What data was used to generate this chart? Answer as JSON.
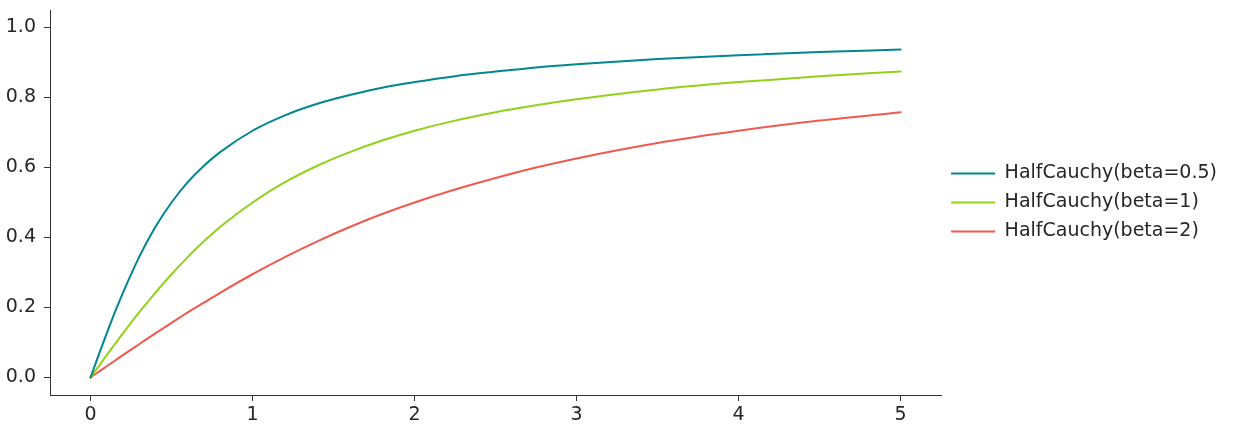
{
  "chart_data": {
    "type": "line",
    "x": [
      0,
      0.05,
      0.1,
      0.15,
      0.2,
      0.3,
      0.4,
      0.5,
      0.6,
      0.7,
      0.8,
      1.0,
      1.2,
      1.4,
      1.6,
      1.8,
      2.0,
      2.25,
      2.5,
      2.75,
      3.0,
      3.5,
      4.0,
      4.5,
      5.0
    ],
    "series": [
      {
        "name": "HalfCauchy(beta=0.5)",
        "color": "#00878f",
        "values": [
          0,
          0.064,
          0.126,
          0.186,
          0.242,
          0.344,
          0.43,
          0.5,
          0.558,
          0.605,
          0.644,
          0.705,
          0.749,
          0.782,
          0.807,
          0.828,
          0.844,
          0.861,
          0.874,
          0.886,
          0.895,
          0.91,
          0.921,
          0.93,
          0.937
        ]
      },
      {
        "name": "HalfCauchy(beta=1)",
        "color": "#8fd21a",
        "values": [
          0,
          0.032,
          0.064,
          0.095,
          0.126,
          0.186,
          0.242,
          0.295,
          0.344,
          0.389,
          0.43,
          0.5,
          0.558,
          0.605,
          0.644,
          0.677,
          0.705,
          0.734,
          0.758,
          0.778,
          0.795,
          0.823,
          0.844,
          0.861,
          0.874
        ]
      },
      {
        "name": "HalfCauchy(beta=2)",
        "color": "#ef5a50",
        "values": [
          0,
          0.016,
          0.032,
          0.048,
          0.064,
          0.095,
          0.126,
          0.156,
          0.186,
          0.214,
          0.242,
          0.295,
          0.344,
          0.389,
          0.43,
          0.467,
          0.5,
          0.537,
          0.57,
          0.6,
          0.626,
          0.67,
          0.705,
          0.734,
          0.758
        ]
      }
    ],
    "xlim": [
      -0.25,
      5.25
    ],
    "xticks": [
      0,
      1,
      2,
      3,
      4,
      5
    ],
    "ylim": [
      -0.05,
      1.05
    ],
    "yticks": [
      {
        "value": 0,
        "label": "0.0"
      },
      0.2,
      0.4,
      0.6,
      0.8,
      {
        "value": 1,
        "label": "1.0"
      }
    ],
    "grid": false,
    "legend": "right"
  }
}
